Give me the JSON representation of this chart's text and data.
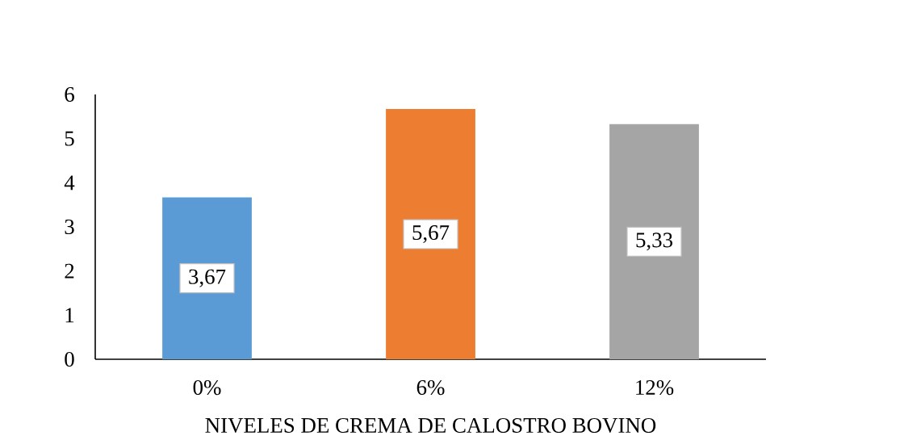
{
  "chart_data": {
    "type": "bar",
    "xlabel": "NIVELES DE CREMA DE CALOSTRO BOVINO",
    "categories": [
      "0%",
      "6%",
      "12%"
    ],
    "values": [
      3.67,
      5.67,
      5.33
    ],
    "colors": [
      "#5b9bd5",
      "#ed7d31",
      "#a5a5a5"
    ],
    "value_labels": [
      "3,67",
      "5,67",
      "5,33"
    ],
    "ylim": [
      0,
      6
    ],
    "yticks": [
      0,
      1,
      2,
      3,
      4,
      5,
      6
    ]
  }
}
